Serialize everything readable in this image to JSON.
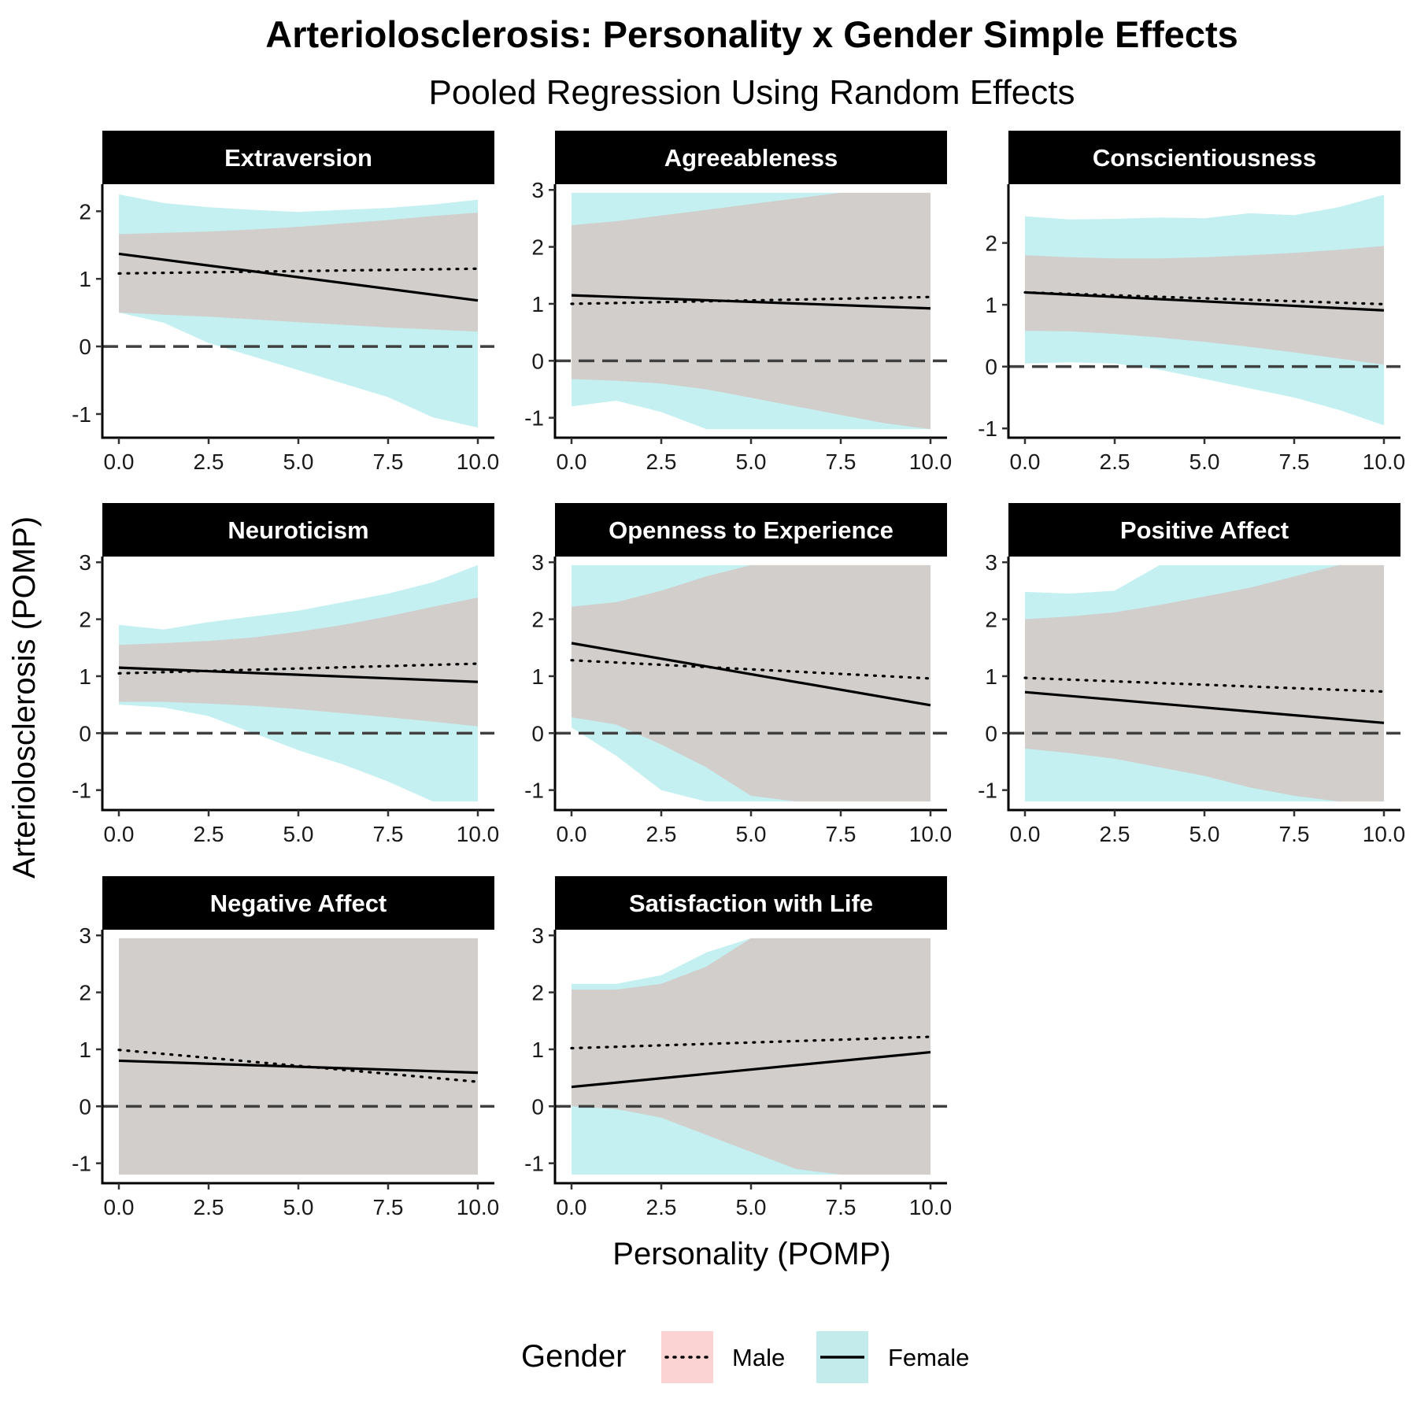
{
  "chart_data": {
    "type": "line",
    "title": "Arteriolosclerosis: Personality x Gender Simple Effects",
    "subtitle": "Pooled Regression Using Random Effects",
    "xlabel": "Personality (POMP)",
    "ylabel": "Arteriolosclerosis (POMP)",
    "xlim": [
      0,
      10
    ],
    "x_ticks": [
      0,
      2.5,
      5,
      7.5,
      10
    ],
    "x_tick_labels": [
      "0.0",
      "2.5",
      "5.0",
      "7.5",
      "10.0"
    ],
    "legend": {
      "title": "Gender",
      "position": "bottom",
      "entries": [
        {
          "label": "Male",
          "linetype": "dotted",
          "fill": "#f8d0d0"
        },
        {
          "label": "Female",
          "linetype": "solid",
          "fill": "#c3ebeb"
        }
      ]
    },
    "colors": {
      "male_band": "#f8766d",
      "female_band": "#00bfc4",
      "overlap": "#c1cfce",
      "strip": "#000000",
      "zero_line": "#404040"
    },
    "x_grid": [
      0,
      1.25,
      2.5,
      3.75,
      5,
      6.25,
      7.5,
      8.75,
      10
    ],
    "panels": [
      {
        "name": "Extraversion",
        "ylim": [
          -1.35,
          2.4
        ],
        "y_ticks": [
          -1,
          0,
          1,
          2
        ],
        "male": {
          "line": [
            1.08,
            1.15
          ],
          "lower": [
            0.5,
            0.47,
            0.44,
            0.4,
            0.36,
            0.32,
            0.28,
            0.25,
            0.22
          ],
          "upper": [
            1.66,
            1.68,
            1.7,
            1.73,
            1.77,
            1.82,
            1.87,
            1.93,
            1.98
          ]
        },
        "female": {
          "line": [
            1.37,
            0.68
          ],
          "lower": [
            0.5,
            0.35,
            0.05,
            -0.15,
            -0.35,
            -0.55,
            -0.75,
            -1.05,
            -1.2
          ],
          "upper": [
            2.25,
            2.12,
            2.06,
            2.02,
            1.99,
            2.02,
            2.05,
            2.1,
            2.17
          ]
        }
      },
      {
        "name": "Agreeableness",
        "ylim": [
          -1.35,
          3.1
        ],
        "y_ticks": [
          -1,
          0,
          1,
          2,
          3
        ],
        "male": {
          "line": [
            1.0,
            1.12
          ],
          "lower": [
            -0.32,
            -0.35,
            -0.4,
            -0.5,
            -0.65,
            -0.8,
            -0.95,
            -1.1,
            -1.2
          ],
          "upper": [
            2.38,
            2.45,
            2.55,
            2.65,
            2.75,
            2.85,
            2.95,
            2.95,
            2.95
          ]
        },
        "female": {
          "line": [
            1.15,
            0.92
          ],
          "lower": [
            -0.8,
            -0.7,
            -0.9,
            -1.2,
            -1.2,
            -1.2,
            -1.2,
            -1.2,
            -1.2
          ],
          "upper": [
            2.95,
            2.95,
            2.95,
            2.95,
            2.95,
            2.95,
            2.95,
            2.95,
            2.95
          ]
        }
      },
      {
        "name": "Conscientiousness",
        "ylim": [
          -1.15,
          2.95
        ],
        "y_ticks": [
          -1,
          0,
          1,
          2
        ],
        "male": {
          "line": [
            1.2,
            1.01
          ],
          "lower": [
            0.58,
            0.57,
            0.53,
            0.47,
            0.4,
            0.32,
            0.23,
            0.13,
            0.03
          ],
          "upper": [
            1.8,
            1.77,
            1.75,
            1.75,
            1.77,
            1.8,
            1.84,
            1.89,
            1.95
          ]
        },
        "female": {
          "line": [
            1.2,
            0.91
          ],
          "lower": [
            0.05,
            0.07,
            0.05,
            -0.05,
            -0.2,
            -0.35,
            -0.5,
            -0.7,
            -0.95
          ],
          "upper": [
            2.43,
            2.38,
            2.39,
            2.41,
            2.4,
            2.48,
            2.45,
            2.58,
            2.78
          ]
        }
      },
      {
        "name": "Neuroticism",
        "ylim": [
          -1.35,
          3.1
        ],
        "y_ticks": [
          -1,
          0,
          1,
          2,
          3
        ],
        "male": {
          "line": [
            1.05,
            1.22
          ],
          "lower": [
            0.55,
            0.55,
            0.52,
            0.48,
            0.42,
            0.35,
            0.28,
            0.2,
            0.12
          ],
          "upper": [
            1.55,
            1.58,
            1.62,
            1.68,
            1.78,
            1.9,
            2.05,
            2.22,
            2.38
          ]
        },
        "female": {
          "line": [
            1.15,
            0.9
          ],
          "lower": [
            0.5,
            0.45,
            0.3,
            0.0,
            -0.3,
            -0.55,
            -0.85,
            -1.2,
            -1.2
          ],
          "upper": [
            1.9,
            1.82,
            1.95,
            2.05,
            2.15,
            2.3,
            2.45,
            2.65,
            2.95
          ]
        }
      },
      {
        "name": "Openness to Experience",
        "ylim": [
          -1.35,
          3.1
        ],
        "y_ticks": [
          -1,
          0,
          1,
          2,
          3
        ],
        "male": {
          "line": [
            1.28,
            0.96
          ],
          "lower": [
            0.28,
            0.15,
            -0.2,
            -0.6,
            -1.1,
            -1.2,
            -1.2,
            -1.2,
            -1.2
          ],
          "upper": [
            2.22,
            2.3,
            2.5,
            2.75,
            2.95,
            2.95,
            2.95,
            2.95,
            2.95
          ]
        },
        "female": {
          "line": [
            1.58,
            0.49
          ],
          "lower": [
            0.1,
            -0.4,
            -1.0,
            -1.2,
            -1.2,
            -1.2,
            -1.2,
            -1.2,
            -1.2
          ],
          "upper": [
            2.95,
            2.95,
            2.95,
            2.95,
            2.95,
            2.95,
            2.95,
            2.95,
            2.95
          ]
        }
      },
      {
        "name": "Positive Affect",
        "ylim": [
          -1.35,
          3.1
        ],
        "y_ticks": [
          -1,
          0,
          1,
          2,
          3
        ],
        "male": {
          "line": [
            0.97,
            0.73
          ],
          "lower": [
            -0.27,
            -0.35,
            -0.45,
            -0.6,
            -0.75,
            -0.95,
            -1.1,
            -1.2,
            -1.2
          ],
          "upper": [
            2.0,
            2.05,
            2.12,
            2.25,
            2.4,
            2.55,
            2.75,
            2.95,
            2.95
          ]
        },
        "female": {
          "line": [
            0.72,
            0.18
          ],
          "lower": [
            -1.2,
            -1.2,
            -1.2,
            -1.2,
            -1.2,
            -1.2,
            -1.2,
            -1.2,
            -1.2
          ],
          "upper": [
            2.48,
            2.45,
            2.5,
            2.95,
            2.95,
            2.95,
            2.95,
            2.95,
            2.95
          ]
        }
      },
      {
        "name": "Negative Affect",
        "ylim": [
          -1.35,
          3.1
        ],
        "y_ticks": [
          -1,
          0,
          1,
          2,
          3
        ],
        "male": {
          "line": [
            0.99,
            0.43
          ],
          "lower": [
            -1.2,
            -1.2,
            -1.2,
            -1.2,
            -1.2,
            -1.2,
            -1.2,
            -1.2,
            -1.2
          ],
          "upper": [
            2.95,
            2.95,
            2.95,
            2.95,
            2.95,
            2.95,
            2.95,
            2.95,
            2.95
          ]
        },
        "female": {
          "line": [
            0.8,
            0.59
          ],
          "lower": [
            -1.2,
            -1.2,
            -1.2,
            -1.2,
            -1.2,
            -1.2,
            -1.2,
            -1.2,
            -1.2
          ],
          "upper": [
            2.95,
            2.95,
            2.95,
            2.95,
            2.95,
            2.95,
            2.95,
            2.95,
            2.95
          ]
        }
      },
      {
        "name": "Satisfaction with Life",
        "ylim": [
          -1.35,
          3.1
        ],
        "y_ticks": [
          -1,
          0,
          1,
          2,
          3
        ],
        "male": {
          "line": [
            1.02,
            1.22
          ],
          "lower": [
            0.0,
            -0.05,
            -0.2,
            -0.5,
            -0.8,
            -1.1,
            -1.2,
            -1.2,
            -1.2
          ],
          "upper": [
            2.05,
            2.05,
            2.15,
            2.45,
            2.95,
            2.95,
            2.95,
            2.95,
            2.95
          ]
        },
        "female": {
          "line": [
            0.34,
            0.95
          ],
          "lower": [
            -1.2,
            -1.2,
            -1.2,
            -1.2,
            -1.2,
            -1.2,
            -1.2,
            -1.2,
            -1.2
          ],
          "upper": [
            2.15,
            2.15,
            2.3,
            2.7,
            2.95,
            2.95,
            2.95,
            2.95,
            2.95
          ]
        }
      }
    ]
  }
}
